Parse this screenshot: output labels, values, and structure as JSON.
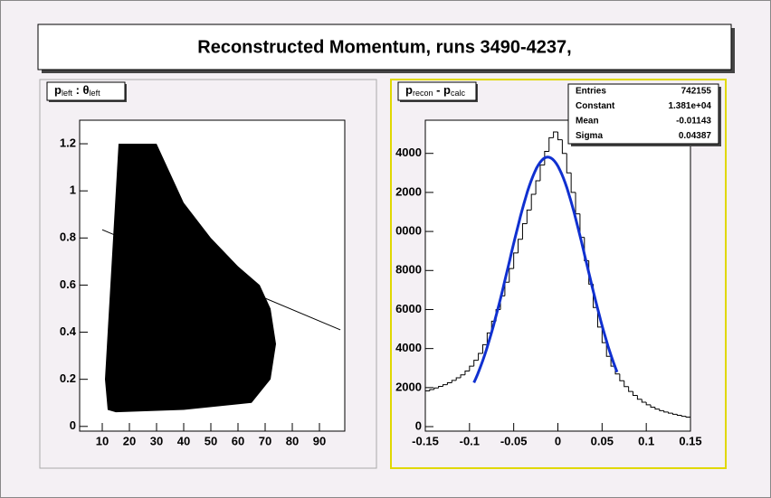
{
  "title": "Reconstructed Momentum, runs 3490-4237,",
  "chart_data": [
    {
      "type": "scatter-region",
      "title_parts": [
        "p",
        "left",
        " : θ",
        "left"
      ],
      "xlim": [
        1.67,
        99.33
      ],
      "ylim": [
        -0.02,
        1.3
      ],
      "xticks": [
        10,
        20,
        30,
        40,
        50,
        60,
        70,
        80,
        90
      ],
      "yticks": [
        0,
        0.2,
        0.4,
        0.6,
        0.8,
        1,
        1.2
      ],
      "color": "#000000",
      "x": [
        12,
        11,
        12,
        13,
        14,
        15,
        16,
        30,
        40,
        50,
        60,
        68,
        72,
        74,
        72,
        65,
        40,
        15
      ],
      "y": [
        0.07,
        0.2,
        0.4,
        0.6,
        0.8,
        1.0,
        1.2,
        1.2,
        0.95,
        0.8,
        0.68,
        0.6,
        0.5,
        0.35,
        0.2,
        0.1,
        0.07,
        0.06
      ],
      "fit": {
        "x": [
          10,
          97.7
        ],
        "y": [
          0.835,
          0.41
        ]
      }
    },
    {
      "type": "histogram",
      "title_parts": [
        "p",
        "recon",
        " - p",
        "calc"
      ],
      "xlim": [
        -0.15,
        0.15
      ],
      "ylim": [
        -230,
        15700
      ],
      "xticks": [
        -0.15,
        -0.1,
        -0.05,
        0,
        0.05,
        0.1,
        0.15
      ],
      "yticks": [
        0,
        {
          "value": 2000,
          "label": "2000"
        },
        {
          "value": 4000,
          "label": "4000"
        },
        {
          "value": 6000,
          "label": "6000"
        },
        {
          "value": 8000,
          "label": "8000"
        },
        {
          "value": 10000,
          "label": "0000"
        },
        {
          "value": 12000,
          "label": "2000"
        },
        {
          "value": 14000,
          "label": "4000"
        }
      ],
      "color": "#000000",
      "fit_color": "#1030d0",
      "bins": [
        -0.15,
        -0.145,
        -0.14,
        -0.135,
        -0.13,
        -0.125,
        -0.12,
        -0.115,
        -0.11,
        -0.105,
        -0.1,
        -0.095,
        -0.09,
        -0.085,
        -0.08,
        -0.075,
        -0.07,
        -0.065,
        -0.06,
        -0.055,
        -0.05,
        -0.045,
        -0.04,
        -0.035,
        -0.03,
        -0.025,
        -0.02,
        -0.015,
        -0.01,
        -0.005,
        0,
        0.005,
        0.01,
        0.015,
        0.02,
        0.025,
        0.03,
        0.035,
        0.04,
        0.045,
        0.05,
        0.055,
        0.06,
        0.065,
        0.07,
        0.075,
        0.08,
        0.085,
        0.09,
        0.095,
        0.1,
        0.105,
        0.11,
        0.115,
        0.12,
        0.125,
        0.13,
        0.135,
        0.14,
        0.145,
        0.15
      ],
      "values": [
        1830,
        1900,
        1980,
        2060,
        2150,
        2250,
        2370,
        2500,
        2650,
        2850,
        3100,
        3400,
        3750,
        4200,
        4800,
        5400,
        6000,
        6700,
        7400,
        8100,
        8900,
        9600,
        10400,
        11100,
        11900,
        12600,
        13400,
        14100,
        14800,
        15100,
        14700,
        14000,
        13000,
        12000,
        10900,
        9700,
        8500,
        7300,
        6100,
        5100,
        4300,
        3600,
        3100,
        2700,
        2350,
        2050,
        1800,
        1600,
        1400,
        1250,
        1120,
        1000,
        900,
        820,
        750,
        690,
        630,
        580,
        530,
        490
      ],
      "fit_range": [
        -0.095,
        0.067
      ],
      "stats": [
        [
          "Entries",
          "742155"
        ],
        [
          "Constant",
          "1.381e+04"
        ],
        [
          "Mean",
          "-0.01143"
        ],
        [
          "Sigma",
          "0.04387"
        ]
      ]
    }
  ]
}
